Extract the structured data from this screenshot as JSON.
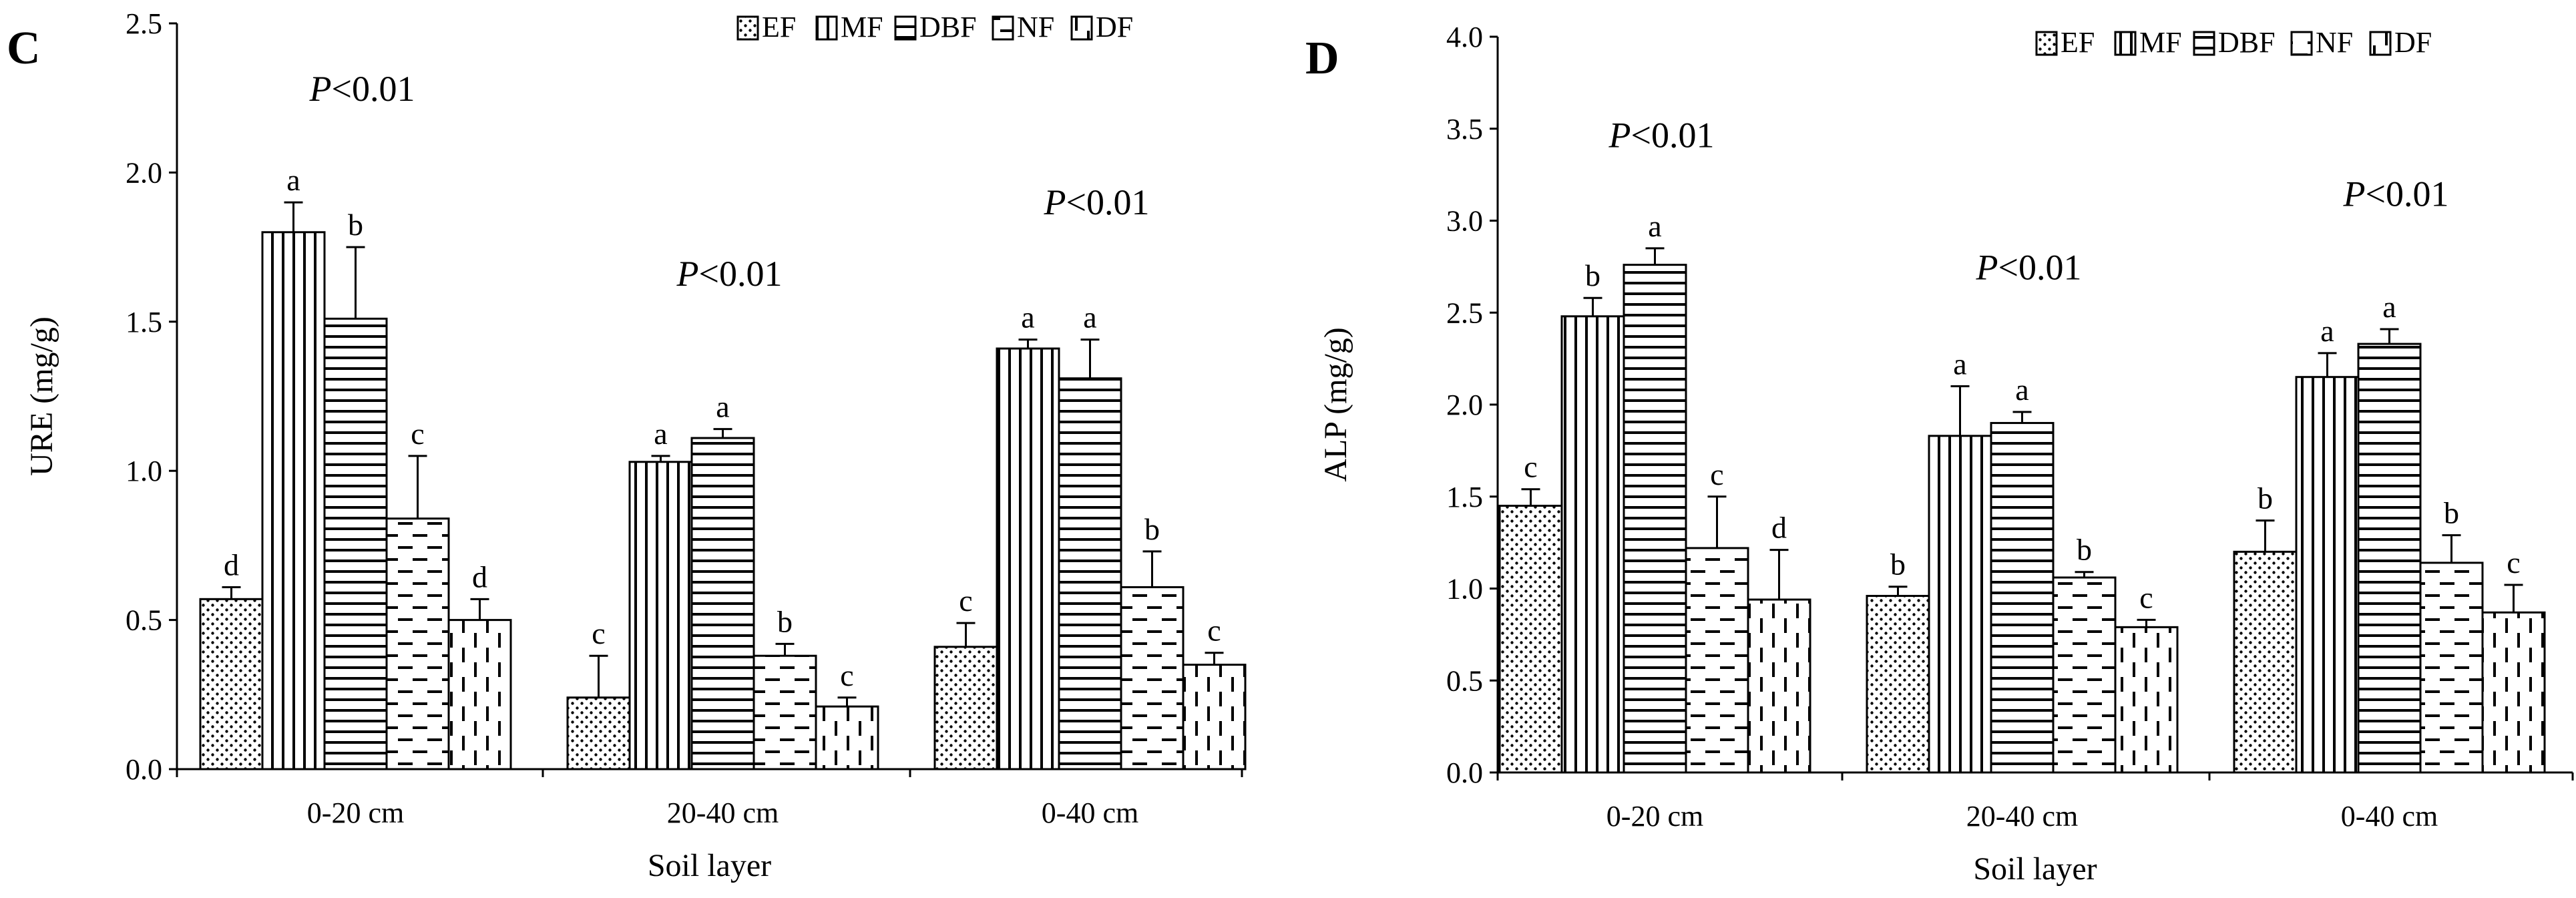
{
  "chart_data": [
    {
      "panel_label": "C",
      "type": "bar",
      "title": "",
      "xlabel": "Soil layer",
      "ylabel": "URE (mg/g)",
      "ylim": [
        0,
        2.5
      ],
      "yticks": [
        "0.0",
        "0.5",
        "1.0",
        "1.5",
        "2.0",
        "2.5"
      ],
      "ytick_values": [
        0,
        0.5,
        1.0,
        1.5,
        2.0,
        2.5
      ],
      "categories": [
        "0-20 cm",
        "20-40 cm",
        "0-40 cm"
      ],
      "legend_position": "top-right",
      "series": [
        {
          "name": "EF",
          "pattern": "dots",
          "values": [
            0.57,
            0.24,
            0.41
          ],
          "errors": [
            0.04,
            0.14,
            0.08
          ],
          "letters": [
            "d",
            "c",
            "c"
          ]
        },
        {
          "name": "MF",
          "pattern": "vertical",
          "values": [
            1.8,
            1.03,
            1.41
          ],
          "errors": [
            0.1,
            0.02,
            0.03
          ],
          "letters": [
            "a",
            "a",
            "a"
          ]
        },
        {
          "name": "DBF",
          "pattern": "horizontal",
          "values": [
            1.51,
            1.11,
            1.31
          ],
          "errors": [
            0.24,
            0.03,
            0.13
          ],
          "letters": [
            "b",
            "a",
            "a"
          ]
        },
        {
          "name": "NF",
          "pattern": "hdash",
          "values": [
            0.84,
            0.38,
            0.61
          ],
          "errors": [
            0.21,
            0.04,
            0.12
          ],
          "letters": [
            "c",
            "b",
            "b"
          ]
        },
        {
          "name": "DF",
          "pattern": "vdash",
          "values": [
            0.5,
            0.21,
            0.35
          ],
          "errors": [
            0.07,
            0.03,
            0.04
          ],
          "letters": [
            "d",
            "c",
            "c"
          ]
        }
      ],
      "annotations": [
        {
          "category": "0-20 cm",
          "text_p": "P",
          "text_rest": "<0.01",
          "at_value": 2.24
        },
        {
          "category": "20-40 cm",
          "text_p": "P",
          "text_rest": "<0.01",
          "at_value": 1.62
        },
        {
          "category": "0-40 cm",
          "text_p": "P",
          "text_rest": "<0.01",
          "at_value": 1.86
        }
      ]
    },
    {
      "panel_label": "D",
      "type": "bar",
      "title": "",
      "xlabel": "Soil layer",
      "ylabel": "ALP (mg/g)",
      "ylim": [
        0,
        4.0
      ],
      "yticks": [
        "0.0",
        "0.5",
        "1.0",
        "1.5",
        "2.0",
        "2.5",
        "3.0",
        "3.5",
        "4.0"
      ],
      "ytick_values": [
        0,
        0.5,
        1.0,
        1.5,
        2.0,
        2.5,
        3.0,
        3.5,
        4.0
      ],
      "categories": [
        "0-20 cm",
        "20-40 cm",
        "0-40 cm"
      ],
      "legend_position": "top-right",
      "series": [
        {
          "name": "EF",
          "pattern": "dots",
          "values": [
            1.45,
            0.96,
            1.2
          ],
          "errors": [
            0.09,
            0.05,
            0.17
          ],
          "letters": [
            "c",
            "b",
            "b"
          ]
        },
        {
          "name": "MF",
          "pattern": "vertical",
          "values": [
            2.48,
            1.83,
            2.15
          ],
          "errors": [
            0.1,
            0.27,
            0.13
          ],
          "letters": [
            "b",
            "a",
            "a"
          ]
        },
        {
          "name": "DBF",
          "pattern": "horizontal",
          "values": [
            2.76,
            1.9,
            2.33
          ],
          "errors": [
            0.09,
            0.06,
            0.08
          ],
          "letters": [
            "a",
            "a",
            "a"
          ]
        },
        {
          "name": "NF",
          "pattern": "hdash",
          "values": [
            1.22,
            1.06,
            1.14
          ],
          "errors": [
            0.28,
            0.03,
            0.15
          ],
          "letters": [
            "c",
            "b",
            "b"
          ]
        },
        {
          "name": "DF",
          "pattern": "vdash",
          "values": [
            0.94,
            0.79,
            0.87
          ],
          "errors": [
            0.27,
            0.04,
            0.15
          ],
          "letters": [
            "d",
            "c",
            "c"
          ]
        }
      ],
      "annotations": [
        {
          "category": "0-20 cm",
          "text_p": "P",
          "text_rest": "<0.01",
          "at_value": 3.4
        },
        {
          "category": "20-40 cm",
          "text_p": "P",
          "text_rest": "<0.01",
          "at_value": 2.68
        },
        {
          "category": "0-40 cm",
          "text_p": "P",
          "text_rest": "<0.01",
          "at_value": 3.08
        }
      ]
    }
  ]
}
